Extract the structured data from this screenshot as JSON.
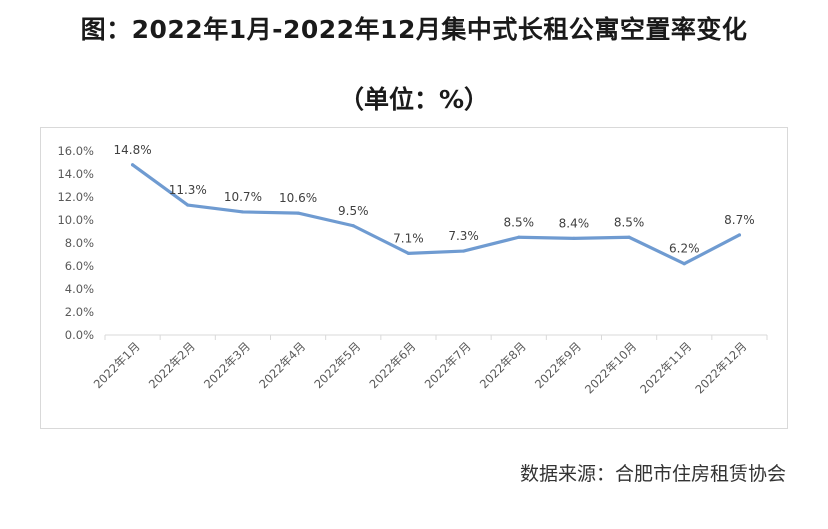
{
  "title": "图：2022年1月-2022年12月集中式长租公寓空置率变化",
  "subtitle": "（单位：%）",
  "source": {
    "label": "数据来源：",
    "value": "合肥市住房租赁协会"
  },
  "colors": {
    "line": "#6f9bd1",
    "grid": "#d9d9d9",
    "axis_text": "#595959"
  },
  "chart_data": {
    "type": "line",
    "categories": [
      "2022年1月",
      "2022年2月",
      "2022年3月",
      "2022年4月",
      "2022年5月",
      "2022年6月",
      "2022年7月",
      "2022年8月",
      "2022年9月",
      "2022年10月",
      "2022年11月",
      "2022年12月"
    ],
    "series": [
      {
        "values": [
          14.8,
          11.3,
          10.7,
          10.6,
          9.5,
          7.1,
          7.3,
          8.5,
          8.4,
          8.5,
          6.2,
          8.7
        ],
        "data_labels": [
          "14.8%",
          "11.3%",
          "10.7%",
          "10.6%",
          "9.5%",
          "7.1%",
          "7.3%",
          "8.5%",
          "8.4%",
          "8.5%",
          "6.2%",
          "8.7%"
        ]
      }
    ],
    "ylim": [
      0,
      16
    ],
    "yticks": [
      0,
      2,
      4,
      6,
      8,
      10,
      12,
      14,
      16
    ],
    "ytick_labels": [
      "0.0%",
      "2.0%",
      "4.0%",
      "6.0%",
      "8.0%",
      "10.0%",
      "12.0%",
      "14.0%",
      "16.0%"
    ],
    "grid": "none",
    "legend": "none",
    "xlabel": "",
    "ylabel": ""
  }
}
